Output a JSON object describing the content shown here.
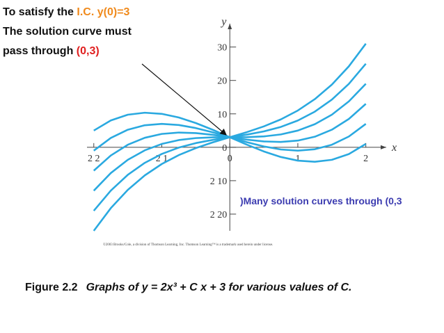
{
  "chart_data": {
    "type": "line",
    "x": [
      -2,
      -1.75,
      -1.5,
      -1.25,
      -1,
      -0.75,
      -0.5,
      -0.25,
      0,
      0.25,
      0.5,
      0.75,
      1,
      1.25,
      1.5,
      1.75,
      2
    ],
    "color": "#2aa9e0",
    "series": [
      {
        "values": [
          5,
          8.03,
          9.75,
          10.34,
          10,
          8.91,
          7.25,
          5.22,
          3,
          0.78,
          -1.25,
          -2.91,
          -4,
          -4.34,
          -3.75,
          -2.03,
          1
        ]
      },
      {
        "values": [
          -1,
          2.78,
          5.25,
          6.59,
          7,
          6.66,
          5.75,
          4.47,
          3,
          1.53,
          0.25,
          -0.66,
          -1,
          -0.59,
          0.75,
          3.22,
          7
        ]
      },
      {
        "values": [
          -7,
          -2.47,
          0.75,
          2.84,
          4,
          4.41,
          4.25,
          3.72,
          3,
          2.28,
          1.75,
          1.59,
          2,
          3.16,
          5.25,
          8.47,
          13
        ]
      },
      {
        "values": [
          -13,
          -7.72,
          -3.75,
          -0.91,
          1,
          2.16,
          2.75,
          2.97,
          3,
          3.03,
          3.25,
          3.84,
          5,
          6.91,
          9.75,
          13.72,
          19
        ]
      },
      {
        "values": [
          -19,
          -12.97,
          -8.25,
          -4.66,
          -2,
          -0.09,
          1.25,
          2.22,
          3,
          3.78,
          4.75,
          6.09,
          8,
          10.66,
          14.25,
          18.97,
          25
        ]
      },
      {
        "values": [
          -25,
          -18.22,
          -12.75,
          -8.41,
          -5,
          -2.34,
          -0.25,
          1.47,
          3,
          4.53,
          6.25,
          8.34,
          11,
          14.41,
          18.75,
          24.22,
          31
        ]
      }
    ],
    "xlim": [
      -2.1,
      2.3
    ],
    "ylim": [
      -25,
      37
    ],
    "xticks": [
      {
        "value": -2,
        "label": "2 2"
      },
      {
        "value": -1,
        "label": "2 1"
      },
      0,
      1,
      2
    ],
    "yticks": [
      30,
      20,
      10,
      0,
      {
        "value": -10,
        "label": "2 10"
      },
      {
        "value": -20,
        "label": "2 20"
      }
    ],
    "xlabel": "x",
    "ylabel": "y",
    "annotation": {
      "line1": "To satisfy the",
      "ic": "I.C. y(0)=3",
      "line2": "The solution curve must",
      "line3": "pass through",
      "point": "(0,3)"
    },
    "note": ")Many solution curves through (0,3",
    "copyright": "©2003 Brooks/Cole, a division of Thomson Learning, Inc.   Thomson Learning™ is a trademark used herein under license.",
    "caption": {
      "label": "Figure 2.2",
      "text": "Graphs of y = 2x³ + C x + 3 for various values of C."
    }
  }
}
